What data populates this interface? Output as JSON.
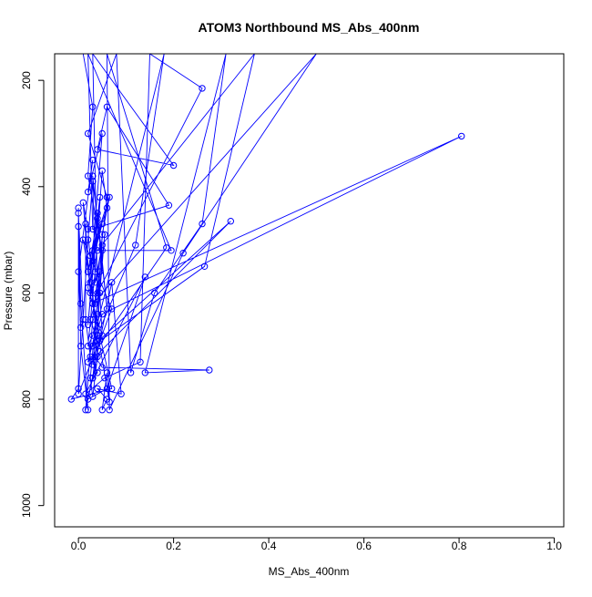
{
  "chart_data": {
    "type": "scatter",
    "title": "ATOM3 Northbound MS_Abs_400nm",
    "xlabel": "MS_Abs_400nm",
    "ylabel": "Pressure (mbar)",
    "xlim": [
      -0.05,
      1.02
    ],
    "ylim": [
      1040,
      150
    ],
    "y_reversed": true,
    "xticks": [
      0.0,
      0.2,
      0.4,
      0.6,
      0.8,
      1.0
    ],
    "xtick_labels": [
      "0.0",
      "0.2",
      "0.4",
      "0.6",
      "0.8",
      "1.0"
    ],
    "yticks": [
      200,
      400,
      600,
      800,
      1000
    ],
    "ytick_labels": [
      "200",
      "400",
      "600",
      "800",
      "1000"
    ],
    "grid": false,
    "legend": "none",
    "series_color": "#0000ff",
    "markers": "open-circle",
    "connected": true,
    "points": [
      [
        0.01,
        150
      ],
      [
        0.03,
        250
      ],
      [
        0.02,
        380
      ],
      [
        0.05,
        520
      ],
      [
        0.04,
        680
      ],
      [
        0.03,
        760
      ],
      [
        0.015,
        820
      ],
      [
        0.03,
        650
      ],
      [
        0.06,
        420
      ],
      [
        0.02,
        300
      ],
      [
        0.08,
        150
      ],
      [
        0.11,
        750
      ],
      [
        0.16,
        600
      ],
      [
        0.26,
        470
      ],
      [
        0.31,
        150
      ],
      [
        0.14,
        750
      ],
      [
        0.275,
        745
      ],
      [
        0.05,
        740
      ],
      [
        0.035,
        720
      ],
      [
        0.32,
        465
      ],
      [
        0.03,
        700
      ],
      [
        0.12,
        510
      ],
      [
        0.18,
        150
      ],
      [
        0.02,
        730
      ],
      [
        0.185,
        515
      ],
      [
        0.06,
        150
      ],
      [
        0.065,
        820
      ],
      [
        0.22,
        525
      ],
      [
        0.5,
        150
      ],
      [
        0.03,
        620
      ],
      [
        0.805,
        305
      ],
      [
        0.05,
        640
      ],
      [
        0.03,
        700
      ],
      [
        0.265,
        550
      ],
      [
        0.37,
        150
      ],
      [
        0.04,
        520
      ],
      [
        0.195,
        520
      ],
      [
        0.02,
        150
      ],
      [
        0.03,
        480
      ],
      [
        0.19,
        435
      ],
      [
        0.06,
        250
      ],
      [
        0.04,
        330
      ],
      [
        0.2,
        360
      ],
      [
        0.03,
        150
      ],
      [
        0.04,
        600
      ],
      [
        0.26,
        215
      ],
      [
        0.15,
        150
      ],
      [
        0.13,
        730
      ],
      [
        0.055,
        760
      ],
      [
        0.015,
        790
      ],
      [
        0.14,
        570
      ],
      [
        0.06,
        780
      ],
      [
        0.02,
        800
      ],
      [
        0.07,
        580
      ],
      [
        0.09,
        790
      ],
      [
        0.04,
        780
      ],
      [
        0.06,
        800
      ],
      [
        0.05,
        820
      ],
      [
        0.06,
        750
      ],
      [
        0.065,
        805
      ],
      [
        0.03,
        620
      ],
      [
        0.07,
        780
      ],
      [
        -0.015,
        800
      ],
      [
        0.0,
        780
      ],
      [
        0.0,
        440
      ],
      [
        0.0,
        475
      ],
      [
        0.005,
        700
      ],
      [
        0.02,
        820
      ],
      [
        0.005,
        620
      ],
      [
        0.0,
        450
      ],
      [
        0.01,
        650
      ],
      [
        0.005,
        665
      ],
      [
        0.0,
        560
      ],
      [
        0.03,
        350
      ],
      [
        0.02,
        410
      ],
      [
        0.05,
        300
      ],
      [
        0.025,
        580
      ],
      [
        0.01,
        500
      ],
      [
        0.07,
        630
      ],
      [
        0.045,
        690
      ],
      [
        0.0,
        790
      ],
      [
        0.02,
        500
      ],
      [
        0.03,
        390
      ],
      [
        0.04,
        460
      ],
      [
        0.02,
        560
      ],
      [
        0.05,
        470
      ],
      [
        0.03,
        540
      ],
      [
        0.045,
        420
      ],
      [
        0.02,
        660
      ],
      [
        0.04,
        450
      ],
      [
        0.06,
        630
      ],
      [
        0.03,
        380
      ],
      [
        0.035,
        580
      ],
      [
        0.05,
        510
      ],
      [
        0.025,
        760
      ],
      [
        0.03,
        795
      ],
      [
        0.04,
        720
      ],
      [
        0.02,
        480
      ],
      [
        0.01,
        430
      ],
      [
        0.025,
        600
      ],
      [
        0.045,
        560
      ],
      [
        0.035,
        620
      ],
      [
        0.025,
        650
      ],
      [
        0.04,
        690
      ],
      [
        0.03,
        735
      ],
      [
        0.055,
        490
      ],
      [
        0.045,
        600
      ],
      [
        0.05,
        680
      ],
      [
        0.02,
        590
      ],
      [
        0.03,
        520
      ],
      [
        0.06,
        440
      ],
      [
        0.05,
        370
      ],
      [
        0.035,
        560
      ],
      [
        0.02,
        700
      ],
      [
        0.03,
        680
      ],
      [
        0.04,
        640
      ],
      [
        0.05,
        490
      ],
      [
        0.065,
        420
      ],
      [
        0.025,
        530
      ],
      [
        0.03,
        610
      ],
      [
        0.02,
        560
      ],
      [
        0.015,
        470
      ],
      [
        0.015,
        650
      ],
      [
        0.025,
        720
      ],
      [
        0.04,
        750
      ],
      [
        0.03,
        760
      ],
      [
        0.045,
        710
      ]
    ]
  }
}
